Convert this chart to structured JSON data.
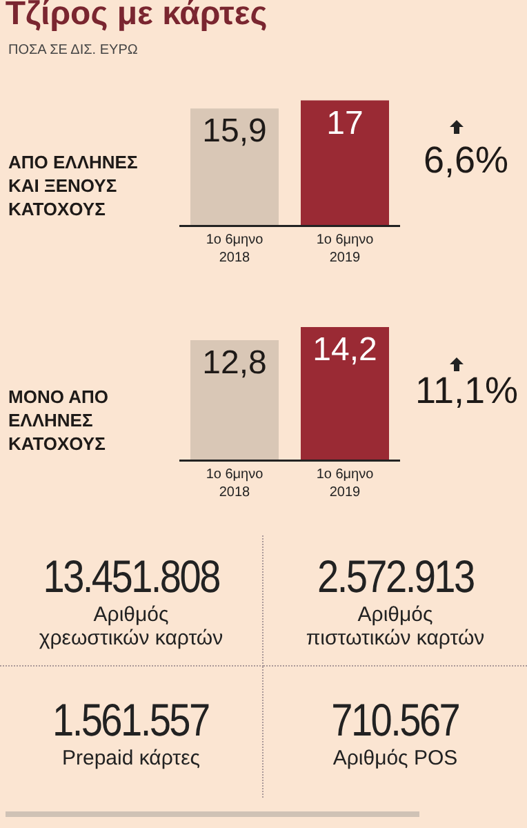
{
  "chart_data": [
    {
      "type": "bar",
      "title": "Τζίρος με κάρτες",
      "subtitle": "ΠΟΣΑ ΣΕ ΔΙΣ. ΕΥΡΩ",
      "categories": [
        "1ο 6μηνο\n2018",
        "1ο 6μηνο\n2019"
      ],
      "values": [
        15.9,
        17
      ],
      "colors": [
        "#d9c7b6",
        "#9a2a34"
      ],
      "value_labels": [
        "15,9",
        "17"
      ],
      "tick_labels": "x",
      "annotations": [
        "ΑΠΟ ΕΛΛΗΝΕΣ\nΚΑΙ ΞΕΝΟΥΣ\nΚΑΤΟΧΟΥΣ",
        "6,6%"
      ]
    },
    {
      "type": "bar",
      "categories": [
        "1ο 6μηνο\n2018",
        "1ο 6μηνο\n2019"
      ],
      "values": [
        12.8,
        14.2
      ],
      "colors": [
        "#d9c7b6",
        "#9a2a34"
      ],
      "value_labels": [
        "12,8",
        "14,2"
      ],
      "tick_labels": "x",
      "annotations": [
        "ΜΟΝΟ ΑΠΟ\nΕΛΛΗΝΕΣ\nΚΑΤΟΧΟΥΣ",
        "11,1%"
      ]
    },
    {
      "type": "other",
      "annotations": [
        "13.451.808",
        "Αριθμός\nχρεωστικών καρτών",
        "2.572.913",
        "Αριθμός\nπιστωτικών καρτών",
        "1.561.557",
        "Prepaid κάρτες",
        "710.567",
        "Αριθμός POS"
      ]
    }
  ]
}
